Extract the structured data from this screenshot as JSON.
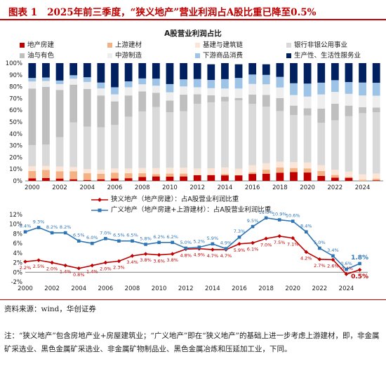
{
  "figure": {
    "label": "图表 1",
    "title": "2025年前三季度，“狭义地产”营业利润占A股比重已降至0.5%"
  },
  "source": "资料来源：wind，华创证券",
  "note": "注：“狭义地产”包含房地产业+房屋建筑业；“广义地产”即在“狭义地产”的基础上进一步考虑上游建材，即，非金属矿采选业、黑色金属矿采选业、非金属矿物制品业、黑色金属冶炼和压延加工业，下同。",
  "chart_data": [
    {
      "type": "bar",
      "stacked": true,
      "title": "A股营业利润占比",
      "legend": "top",
      "y_ticks": [
        "0%",
        "10%",
        "20%",
        "30%",
        "40%",
        "50%",
        "60%",
        "70%",
        "80%",
        "90%",
        "100%"
      ],
      "ylim": [
        0,
        100
      ],
      "x_tick_labels": [
        "2000",
        "2002",
        "2004",
        "2006",
        "2008",
        "2010",
        "2012",
        "2014",
        "2016",
        "2018",
        "2020",
        "2022",
        "2024"
      ],
      "categories": [
        "2000",
        "2001",
        "2002",
        "2003",
        "2004",
        "2005",
        "2006",
        "2007",
        "2008",
        "2009",
        "2010",
        "2011",
        "2012",
        "2013",
        "2014",
        "2015",
        "2016",
        "2017",
        "2018",
        "2019",
        "2020",
        "2021",
        "2022",
        "2023",
        "2024",
        "2025Q3"
      ],
      "series": [
        {
          "name": "地产房建",
          "color": "#c00000",
          "values": [
            2.2,
            2.5,
            2.0,
            1.4,
            0.8,
            1.4,
            2.0,
            2.3,
            3.4,
            3.8,
            3.6,
            3.8,
            4.8,
            4.9,
            4.7,
            4.7,
            5.9,
            6.1,
            7.0,
            7.5,
            7.1,
            4.2,
            2.7,
            2.6,
            -0.4,
            0.5
          ]
        },
        {
          "name": "上游建材",
          "color": "#f4b183",
          "values": [
            6.2,
            6.8,
            6.2,
            6.8,
            5.7,
            4.6,
            5.0,
            4.2,
            3.1,
            2.0,
            2.6,
            2.4,
            0.2,
            0.3,
            1.2,
            0.2,
            1.4,
            3.4,
            4.3,
            3.4,
            3.5,
            4.2,
            2.3,
            0.8,
            1.0,
            1.3
          ]
        },
        {
          "name": "基建与建筑链",
          "color": "#fbe5d6",
          "values": [
            4.0,
            3.5,
            4.0,
            3.5,
            3.5,
            3.5,
            3.5,
            4.0,
            4.5,
            5.0,
            5.0,
            5.0,
            5.5,
            5.5,
            5.5,
            5.5,
            6.0,
            5.5,
            5.0,
            5.0,
            5.0,
            5.0,
            4.5,
            4.5,
            4.5,
            4.5
          ]
        },
        {
          "name": "银行非银公用事业",
          "color": "#d9d9d9",
          "values": [
            18,
            18,
            25,
            38,
            36,
            36,
            37,
            44,
            48,
            52,
            47,
            48,
            55,
            56,
            56,
            58,
            52,
            48,
            43,
            40,
            40,
            36,
            42,
            47,
            52,
            52
          ]
        },
        {
          "name": "油与有色",
          "color": "#bfbfbf",
          "values": [
            48,
            49,
            40,
            32,
            32,
            27,
            20,
            18,
            17,
            12,
            10,
            14,
            8,
            6,
            4,
            2,
            8,
            10,
            11,
            8,
            6,
            12,
            14,
            9,
            5,
            4
          ]
        },
        {
          "name": "中游制造",
          "color": "#eeeeee",
          "values": [
            6,
            5,
            5,
            5,
            6,
            6,
            6,
            7,
            6,
            6,
            7,
            7,
            6,
            6,
            7,
            8,
            9,
            9,
            9,
            9,
            10,
            12,
            10,
            10,
            10,
            10
          ]
        },
        {
          "name": "下游商品消费",
          "color": "#9dc3e6",
          "values": [
            3,
            3,
            3,
            3,
            4,
            5,
            6,
            5,
            5,
            6,
            7,
            6,
            7,
            7,
            8,
            9,
            8,
            8,
            9,
            10,
            11,
            10,
            10,
            10,
            11,
            11
          ]
        },
        {
          "name": "生产性、生活性服务业",
          "color": "#002060",
          "values": [
            12.6,
            12.2,
            14.8,
            10.3,
            12.0,
            16.5,
            20.5,
            15.5,
            13.0,
            13.2,
            18.8,
            13.8,
            13.5,
            13.3,
            13.6,
            11.6,
            9.7,
            9.0,
            11.7,
            17.1,
            17.4,
            16.6,
            14.5,
            16.1,
            16.9,
            16.7
          ]
        }
      ]
    },
    {
      "type": "line",
      "legend": "top-center",
      "y_ticks": [
        "-2%",
        "0%",
        "2%",
        "4%",
        "6%",
        "8%",
        "10%",
        "12%"
      ],
      "ylim": [
        -2,
        12
      ],
      "x_tick_labels": [
        "2000",
        "2002",
        "2004",
        "2006",
        "2008",
        "2010",
        "2012",
        "2014",
        "2016",
        "2018",
        "2020",
        "2022",
        "2024"
      ],
      "x": [
        2000,
        2001,
        2002,
        2003,
        2004,
        2005,
        2006,
        2007,
        2008,
        2009,
        2010,
        2011,
        2012,
        2013,
        2014,
        2015,
        2016,
        2017,
        2018,
        2019,
        2020,
        2021,
        2022,
        2023,
        2024,
        2025
      ],
      "series": [
        {
          "name": "狭义地产（地产房建）：占A股营业利润比重",
          "color": "#c00000",
          "marker": "diamond",
          "values": [
            2.2,
            2.5,
            2.0,
            1.4,
            0.8,
            1.4,
            2.0,
            2.3,
            3.4,
            3.8,
            3.6,
            3.8,
            4.8,
            4.9,
            4.7,
            4.7,
            5.9,
            6.1,
            7.0,
            7.5,
            7.1,
            4.2,
            2.7,
            2.6,
            -0.4,
            0.5
          ],
          "labels": [
            "2.2%",
            "2.5%",
            "2.0%",
            "1.4%",
            "0.8%",
            "1.4%",
            "2.0%",
            "2.3%",
            "3.4%",
            "3.8%",
            "3.6%",
            "3.8%",
            "4.8%",
            "4.9%",
            "4.7%",
            "4.7%",
            "5.9%",
            "6.1%",
            "7.0%",
            "7.5%",
            "7.1%",
            "4.2%",
            "2.7%",
            "2.6%",
            "-0.4%",
            "0.5%"
          ]
        },
        {
          "name": "广义地产（地产房建+上游建材）：占A股营业利润比重",
          "color": "#2e75b6",
          "marker": "square",
          "values": [
            8.4,
            9.3,
            8.2,
            8.2,
            6.5,
            6.0,
            7.0,
            6.5,
            6.5,
            5.8,
            6.2,
            6.2,
            5.0,
            5.2,
            5.9,
            4.9,
            7.3,
            9.5,
            11.3,
            10.9,
            10.6,
            8.4,
            5.0,
            3.4,
            0.6,
            1.8
          ],
          "labels": [
            "8.4%",
            "9.3%",
            "8.2%",
            "8.2%",
            "6.5%",
            "6.0%",
            "7.0%",
            "6.5%",
            "6.5%",
            "5.8%",
            "6.2%",
            "6.2%",
            "5.0%",
            "5.2%",
            "5.9%",
            "4.9%",
            "7.3%",
            "9.5%",
            "11.3%",
            "10.9%",
            "10.6%",
            "8.4%",
            "5.0%",
            "3.4%",
            "0.6%",
            "1.8%"
          ]
        }
      ]
    }
  ]
}
